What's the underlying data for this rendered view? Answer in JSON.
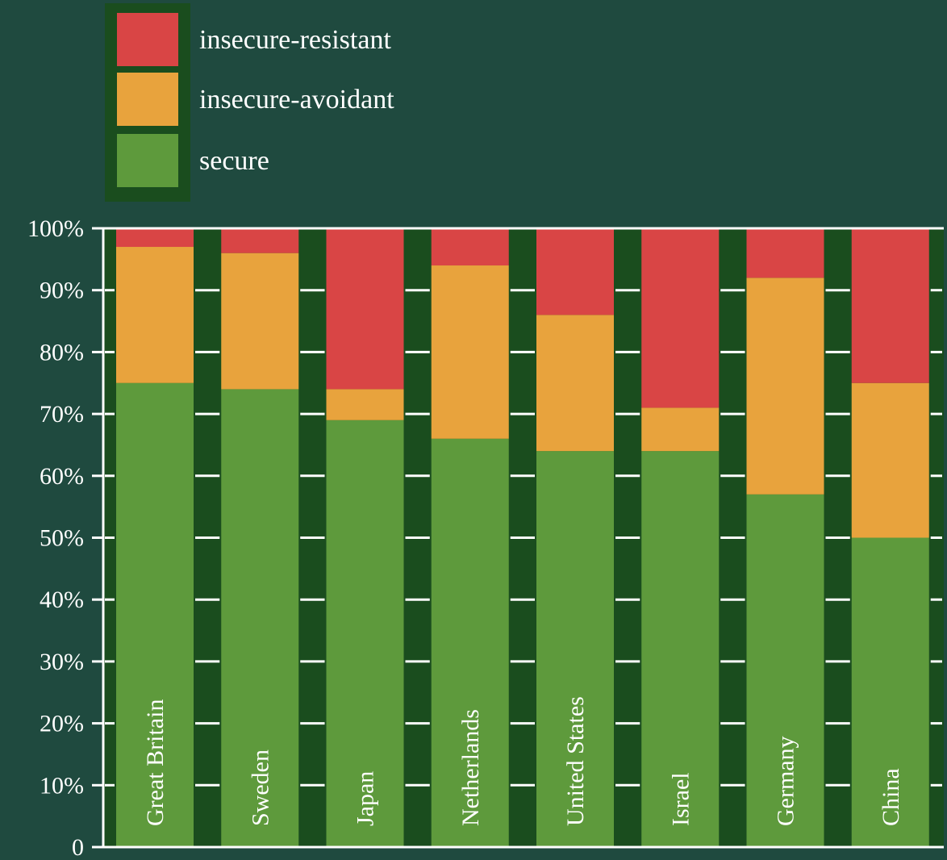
{
  "chart_data": {
    "type": "bar",
    "stacked": true,
    "orientation": "vertical",
    "categories": [
      "Great Britain",
      "Sweden",
      "Japan",
      "Netherlands",
      "United States",
      "Israel",
      "Germany",
      "China"
    ],
    "series": [
      {
        "name": "secure",
        "values": [
          75,
          74,
          69,
          66,
          64,
          64,
          57,
          50
        ]
      },
      {
        "name": "insecure-avoidant",
        "values": [
          22,
          22,
          5,
          28,
          22,
          7,
          35,
          25
        ]
      },
      {
        "name": "insecure-resistant",
        "values": [
          3,
          4,
          26,
          6,
          14,
          29,
          8,
          25
        ]
      }
    ],
    "legend_order": [
      "insecure-resistant",
      "insecure-avoidant",
      "secure"
    ],
    "yticks": [
      "0",
      "10%",
      "20%",
      "30%",
      "40%",
      "50%",
      "60%",
      "70%",
      "80%",
      "90%",
      "100%"
    ],
    "ylim": [
      0,
      100
    ],
    "grid": true,
    "legend_position": "top-left",
    "title": "",
    "xlabel": "",
    "ylabel": "",
    "colors": {
      "background": "#1f4a3f",
      "secure": "#5e9a3c",
      "insecure-avoidant": "#e8a33d",
      "insecure-resistant": "#d94545",
      "separator": "#1a4d1e",
      "grid": "#ffffff",
      "axis": "#ffffff",
      "legend_frame": "#1a4d1e"
    }
  }
}
